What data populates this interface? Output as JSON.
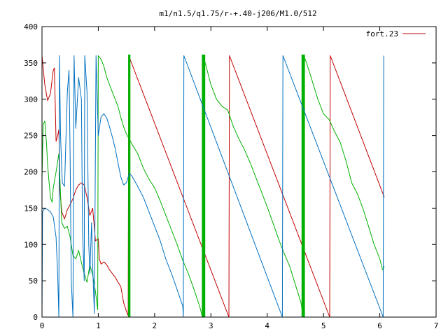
{
  "chart_data": {
    "type": "line",
    "title": "m1/n1.5/q1.75/r-+.40-j206/M1.0/512",
    "xlabel": "",
    "ylabel": "",
    "xlim": [
      0,
      7
    ],
    "ylim": [
      0,
      400
    ],
    "x_ticks": [
      0,
      1,
      2,
      3,
      4,
      5,
      6,
      7
    ],
    "y_ticks": [
      0,
      50,
      100,
      150,
      200,
      250,
      300,
      350,
      400
    ],
    "grid": false,
    "legend_position": "top-right",
    "legend": [
      "fort.23"
    ],
    "series": [
      {
        "name": "fort.23",
        "color": "#c00000",
        "points": [
          [
            0.0,
            360
          ],
          [
            0.05,
            320
          ],
          [
            0.1,
            298
          ],
          [
            0.15,
            308
          ],
          [
            0.2,
            340
          ],
          [
            0.22,
            343
          ],
          [
            0.23,
            310
          ],
          [
            0.25,
            242
          ],
          [
            0.28,
            250
          ],
          [
            0.3,
            258
          ],
          [
            0.32,
            175
          ],
          [
            0.35,
            145
          ],
          [
            0.4,
            135
          ],
          [
            0.45,
            148
          ],
          [
            0.5,
            155
          ],
          [
            0.55,
            163
          ],
          [
            0.6,
            175
          ],
          [
            0.65,
            182
          ],
          [
            0.7,
            185
          ],
          [
            0.75,
            182
          ],
          [
            0.8,
            165
          ],
          [
            0.85,
            140
          ],
          [
            0.9,
            150
          ],
          [
            0.95,
            105
          ],
          [
            1.0,
            108
          ],
          [
            1.02,
            80
          ],
          [
            1.05,
            73
          ],
          [
            1.1,
            76
          ],
          [
            1.15,
            72
          ],
          [
            1.2,
            65
          ],
          [
            1.25,
            60
          ],
          [
            1.3,
            55
          ],
          [
            1.35,
            48
          ],
          [
            1.4,
            42
          ],
          [
            1.45,
            20
          ],
          [
            1.5,
            8
          ],
          [
            1.53,
            2
          ],
          [
            1.54,
            360
          ],
          [
            3.32,
            0
          ],
          [
            3.33,
            360
          ],
          [
            5.11,
            0
          ],
          [
            5.12,
            360
          ],
          [
            6.08,
            165
          ]
        ]
      },
      {
        "color": "#00b000",
        "points": [
          [
            0.0,
            190
          ],
          [
            0.02,
            265
          ],
          [
            0.05,
            270
          ],
          [
            0.08,
            240
          ],
          [
            0.1,
            210
          ],
          [
            0.12,
            190
          ],
          [
            0.15,
            165
          ],
          [
            0.18,
            158
          ],
          [
            0.2,
            178
          ],
          [
            0.25,
            200
          ],
          [
            0.3,
            225
          ],
          [
            0.35,
            130
          ],
          [
            0.4,
            122
          ],
          [
            0.45,
            125
          ],
          [
            0.5,
            110
          ],
          [
            0.55,
            85
          ],
          [
            0.6,
            80
          ],
          [
            0.65,
            92
          ],
          [
            0.7,
            75
          ],
          [
            0.75,
            60
          ],
          [
            0.8,
            48
          ],
          [
            0.85,
            72
          ],
          [
            0.9,
            58
          ],
          [
            0.95,
            35
          ],
          [
            0.99,
            10
          ],
          [
            1.0,
            360
          ],
          [
            1.05,
            355
          ],
          [
            1.1,
            345
          ],
          [
            1.15,
            330
          ],
          [
            1.2,
            320
          ],
          [
            1.25,
            310
          ],
          [
            1.3,
            300
          ],
          [
            1.35,
            290
          ],
          [
            1.4,
            275
          ],
          [
            1.45,
            262
          ],
          [
            1.5,
            252
          ],
          [
            1.55,
            245
          ],
          [
            1.6,
            238
          ],
          [
            1.7,
            225
          ],
          [
            1.8,
            205
          ],
          [
            1.9,
            190
          ],
          [
            2.0,
            178
          ],
          [
            2.1,
            160
          ],
          [
            2.2,
            140
          ],
          [
            2.3,
            120
          ],
          [
            2.4,
            100
          ],
          [
            2.5,
            78
          ],
          [
            2.6,
            60
          ],
          [
            2.7,
            38
          ],
          [
            2.8,
            15
          ],
          [
            2.85,
            0
          ],
          [
            2.86,
            360
          ],
          [
            2.9,
            350
          ],
          [
            3.0,
            320
          ],
          [
            3.1,
            300
          ],
          [
            3.2,
            290
          ],
          [
            3.3,
            285
          ],
          [
            3.4,
            262
          ],
          [
            3.5,
            245
          ],
          [
            3.6,
            230
          ],
          [
            3.7,
            212
          ],
          [
            3.8,
            192
          ],
          [
            3.9,
            172
          ],
          [
            4.0,
            152
          ],
          [
            4.1,
            130
          ],
          [
            4.2,
            108
          ],
          [
            4.3,
            88
          ],
          [
            4.4,
            70
          ],
          [
            4.5,
            45
          ],
          [
            4.6,
            20
          ],
          [
            4.64,
            0
          ],
          [
            4.65,
            360
          ],
          [
            4.7,
            350
          ],
          [
            4.8,
            325
          ],
          [
            4.9,
            300
          ],
          [
            5.0,
            280
          ],
          [
            5.1,
            272
          ],
          [
            5.2,
            255
          ],
          [
            5.3,
            240
          ],
          [
            5.4,
            215
          ],
          [
            5.5,
            185
          ],
          [
            5.6,
            170
          ],
          [
            5.7,
            150
          ],
          [
            5.8,
            125
          ],
          [
            5.9,
            100
          ],
          [
            6.0,
            80
          ],
          [
            6.05,
            65
          ],
          [
            6.08,
            70
          ]
        ],
        "thick_x_ranges": [
          [
            1.53,
            1.57
          ],
          [
            2.84,
            2.9
          ],
          [
            4.61,
            4.67
          ]
        ]
      },
      {
        "color": "#0070c0",
        "points": [
          [
            0.0,
            0
          ],
          [
            0.01,
            145
          ],
          [
            0.05,
            150
          ],
          [
            0.1,
            148
          ],
          [
            0.15,
            145
          ],
          [
            0.2,
            138
          ],
          [
            0.25,
            110
          ],
          [
            0.28,
            55
          ],
          [
            0.3,
            0
          ],
          [
            0.31,
            360
          ],
          [
            0.33,
            250
          ],
          [
            0.36,
            185
          ],
          [
            0.4,
            180
          ],
          [
            0.45,
            310
          ],
          [
            0.48,
            340
          ],
          [
            0.5,
            220
          ],
          [
            0.52,
            50
          ],
          [
            0.55,
            0
          ],
          [
            0.57,
            360
          ],
          [
            0.6,
            260
          ],
          [
            0.65,
            330
          ],
          [
            0.7,
            300
          ],
          [
            0.72,
            120
          ],
          [
            0.75,
            50
          ],
          [
            0.76,
            360
          ],
          [
            0.8,
            310
          ],
          [
            0.83,
            100
          ],
          [
            0.85,
            60
          ],
          [
            0.88,
            130
          ],
          [
            0.9,
            70
          ],
          [
            0.93,
            5
          ],
          [
            0.96,
            360
          ],
          [
            1.0,
            250
          ],
          [
            1.05,
            276
          ],
          [
            1.1,
            280
          ],
          [
            1.15,
            274
          ],
          [
            1.2,
            262
          ],
          [
            1.25,
            248
          ],
          [
            1.3,
            232
          ],
          [
            1.35,
            212
          ],
          [
            1.4,
            193
          ],
          [
            1.45,
            182
          ],
          [
            1.5,
            185
          ],
          [
            1.55,
            198
          ],
          [
            1.6,
            194
          ],
          [
            1.7,
            180
          ],
          [
            1.8,
            165
          ],
          [
            1.9,
            145
          ],
          [
            2.0,
            125
          ],
          [
            2.1,
            105
          ],
          [
            2.2,
            80
          ],
          [
            2.3,
            60
          ],
          [
            2.4,
            38
          ],
          [
            2.5,
            15
          ],
          [
            2.51,
            0
          ],
          [
            2.52,
            360
          ],
          [
            4.27,
            0
          ],
          [
            4.28,
            360
          ],
          [
            6.06,
            0
          ],
          [
            6.07,
            360
          ]
        ]
      }
    ]
  }
}
